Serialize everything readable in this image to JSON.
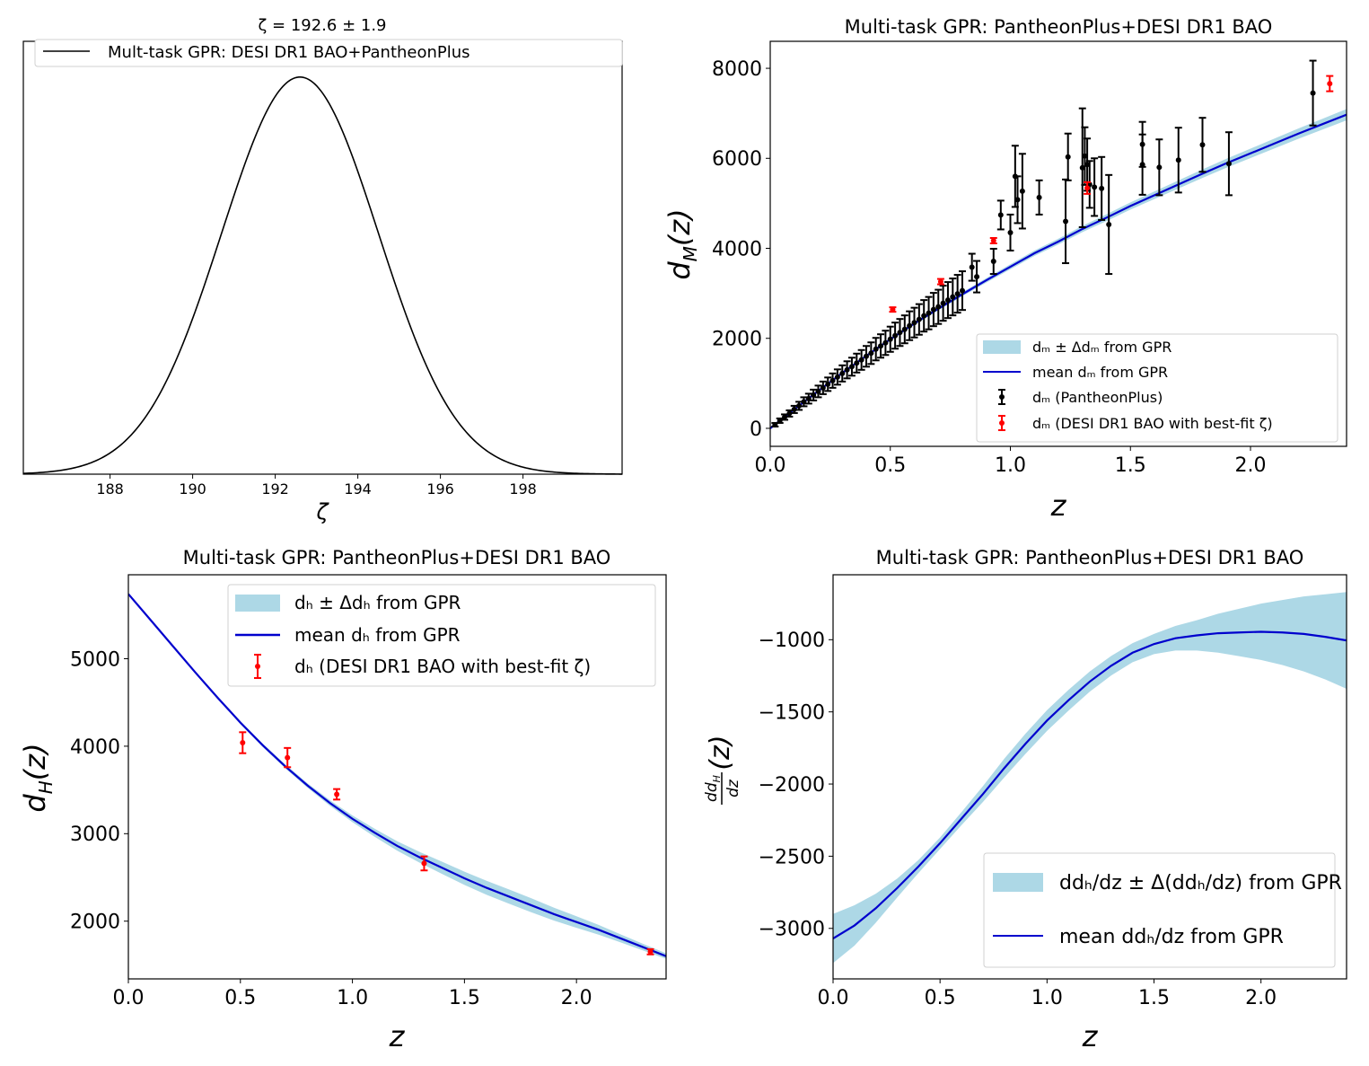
{
  "figure": {
    "layout": "2x2 grid of plots"
  },
  "colors": {
    "band": "#add8e6",
    "mean_line": "#0000cd",
    "pantheon": "#000000",
    "desi": "#ff0000",
    "posterior_line": "#000000"
  },
  "chart_data": [
    {
      "id": "zeta-posterior",
      "type": "line",
      "title": "ζ = 192.6 ± 1.9",
      "xlabel": "ζ",
      "ylabel": "",
      "xlim": [
        185.9,
        200.4
      ],
      "ylim": [
        0,
        1.09
      ],
      "xticks": [
        188,
        190,
        192,
        194,
        196,
        198
      ],
      "yticks": [],
      "grid": false,
      "legend": {
        "placement": "top",
        "entries": [
          {
            "label": "Mult-task GPR: DESI DR1 BAO+PantheonPlus",
            "kind": "line"
          }
        ]
      },
      "series": [
        {
          "name": "Mult-task GPR: DESI DR1 BAO+PantheonPlus",
          "distribution": "gaussian",
          "mean": 192.6,
          "sigma": 1.9
        }
      ]
    },
    {
      "id": "dM-plot",
      "type": "scatter",
      "title": "Multi-task GPR: PantheonPlus+DESI DR1 BAO",
      "xlabel": "z",
      "ylabel": "d_M(z)",
      "xlim": [
        0.0,
        2.4
      ],
      "ylim": [
        -400,
        8600
      ],
      "xticks": [
        0.0,
        0.5,
        1.0,
        1.5,
        2.0
      ],
      "yticks": [
        0,
        2000,
        4000,
        6000,
        8000
      ],
      "grid": false,
      "legend": {
        "placement": "bottom-right",
        "entries": [
          {
            "kind": "band",
            "math": "d_M ± Δd_M",
            "text": " from GPR"
          },
          {
            "kind": "line",
            "prefix": "mean ",
            "math": "d_M",
            "text": " from GPR"
          },
          {
            "kind": "errorbar-black",
            "math": "d_M",
            "text": " (PantheonPlus)"
          },
          {
            "kind": "errorbar-red",
            "math": "d_M",
            "text": " (DESI DR1 BAO with best-fit ζ)"
          }
        ]
      },
      "mean_curve": {
        "x": [
          0.0,
          0.1,
          0.2,
          0.3,
          0.4,
          0.5,
          0.6,
          0.7,
          0.8,
          0.9,
          1.0,
          1.1,
          1.2,
          1.3,
          1.4,
          1.5,
          1.6,
          1.7,
          1.8,
          1.9,
          2.0,
          2.1,
          2.2,
          2.3,
          2.4
        ],
        "y": [
          0,
          420,
          830,
          1230,
          1610,
          1980,
          2330,
          2660,
          2980,
          3290,
          3590,
          3890,
          4150,
          4430,
          4680,
          4940,
          5180,
          5420,
          5660,
          5890,
          6110,
          6330,
          6550,
          6760,
          6970
        ],
        "band_halfwidth": [
          5,
          10,
          15,
          20,
          25,
          30,
          35,
          40,
          45,
          50,
          55,
          60,
          65,
          70,
          75,
          80,
          85,
          90,
          95,
          100,
          105,
          110,
          115,
          120,
          125
        ]
      },
      "pantheon_points": {
        "x": [
          0.02,
          0.04,
          0.06,
          0.08,
          0.1,
          0.12,
          0.14,
          0.16,
          0.18,
          0.2,
          0.22,
          0.24,
          0.26,
          0.28,
          0.3,
          0.32,
          0.34,
          0.36,
          0.38,
          0.4,
          0.42,
          0.44,
          0.46,
          0.48,
          0.5,
          0.52,
          0.54,
          0.56,
          0.58,
          0.6,
          0.62,
          0.64,
          0.66,
          0.68,
          0.7,
          0.72,
          0.74,
          0.76,
          0.78,
          0.8,
          0.84,
          0.86,
          0.93,
          0.96,
          1.0,
          1.02,
          1.03,
          1.05,
          1.12,
          1.23,
          1.24,
          1.3,
          1.31,
          1.32,
          1.33,
          1.35,
          1.38,
          1.41,
          1.55,
          1.55,
          1.62,
          1.7,
          1.8,
          1.91,
          2.26
        ],
        "y": [
          80,
          170,
          250,
          330,
          420,
          500,
          590,
          660,
          740,
          820,
          900,
          980,
          1060,
          1140,
          1220,
          1300,
          1370,
          1450,
          1520,
          1600,
          1670,
          1760,
          1830,
          1900,
          1980,
          2060,
          2130,
          2200,
          2280,
          2350,
          2420,
          2500,
          2560,
          2640,
          2700,
          2780,
          2850,
          2920,
          2990,
          3060,
          3580,
          3370,
          3710,
          4740,
          4350,
          5600,
          5080,
          5270,
          5130,
          4600,
          6030,
          5790,
          6050,
          5860,
          5420,
          5360,
          5330,
          4530,
          5860,
          6310,
          5800,
          5960,
          6300,
          5880,
          7450
        ],
        "err": [
          40,
          50,
          60,
          70,
          80,
          90,
          100,
          110,
          120,
          130,
          140,
          150,
          160,
          170,
          180,
          190,
          200,
          210,
          220,
          230,
          240,
          250,
          260,
          270,
          280,
          290,
          300,
          310,
          320,
          330,
          340,
          350,
          360,
          370,
          380,
          390,
          400,
          410,
          420,
          430,
          300,
          350,
          280,
          320,
          400,
          680,
          520,
          830,
          380,
          930,
          520,
          1320,
          640,
          580,
          520,
          640,
          700,
          1100,
          670,
          500,
          620,
          720,
          600,
          700,
          720
        ]
      },
      "desi_points": {
        "x": [
          0.51,
          0.71,
          0.93,
          1.32,
          2.33
        ],
        "y": [
          2640,
          3260,
          4170,
          5340,
          7660
        ],
        "err": [
          50,
          60,
          60,
          130,
          170
        ]
      }
    },
    {
      "id": "dH-plot",
      "type": "line",
      "title": "Multi-task GPR: PantheonPlus+DESI DR1 BAO",
      "xlabel": "z",
      "ylabel": "d_H(z)",
      "xlim": [
        0.0,
        2.4
      ],
      "ylim": [
        1340,
        5960
      ],
      "xticks": [
        0.0,
        0.5,
        1.0,
        1.5,
        2.0
      ],
      "yticks": [
        2000,
        3000,
        4000,
        5000
      ],
      "grid": false,
      "legend": {
        "placement": "top-right",
        "entries": [
          {
            "kind": "band",
            "math": "d_H ± Δd_H",
            "text": " from GPR"
          },
          {
            "kind": "line",
            "prefix": "mean ",
            "math": "d_H",
            "text": " from GPR"
          },
          {
            "kind": "errorbar-red",
            "math": "d_H",
            "text": " (DESI DR1 BAO with best-fit ζ)"
          }
        ]
      },
      "mean_curve": {
        "x": [
          0.0,
          0.1,
          0.2,
          0.3,
          0.4,
          0.5,
          0.6,
          0.7,
          0.8,
          0.9,
          1.0,
          1.1,
          1.2,
          1.3,
          1.4,
          1.5,
          1.6,
          1.7,
          1.8,
          1.9,
          2.0,
          2.1,
          2.2,
          2.3,
          2.4
        ],
        "y": [
          5740,
          5440,
          5140,
          4840,
          4550,
          4270,
          4010,
          3770,
          3550,
          3350,
          3170,
          3010,
          2860,
          2730,
          2610,
          2490,
          2380,
          2280,
          2180,
          2080,
          1990,
          1900,
          1800,
          1700,
          1600
        ],
        "band_halfwidth": [
          10,
          10,
          12,
          14,
          16,
          18,
          20,
          22,
          26,
          32,
          38,
          46,
          54,
          62,
          70,
          76,
          80,
          82,
          80,
          74,
          66,
          56,
          46,
          38,
          32
        ]
      },
      "desi_points": {
        "x": [
          0.51,
          0.71,
          0.93,
          1.32,
          2.33
        ],
        "y": [
          4040,
          3870,
          3450,
          2660,
          1650
        ],
        "err": [
          120,
          110,
          60,
          80,
          30
        ]
      }
    },
    {
      "id": "dHdz-plot",
      "type": "line",
      "title": "Multi-task GPR: PantheonPlus+DESI DR1 BAO",
      "xlabel": "z",
      "ylabel": "dd_H/dz(z)",
      "xlim": [
        0.0,
        2.4
      ],
      "ylim": [
        -3350,
        -550
      ],
      "xticks": [
        0.0,
        0.5,
        1.0,
        1.5,
        2.0
      ],
      "yticks": [
        -3000,
        -2500,
        -2000,
        -1500,
        -1000
      ],
      "grid": false,
      "legend": {
        "placement": "bottom-right",
        "entries": [
          {
            "kind": "band",
            "text": "dd_H/dz ± Δ(dd_H/dz) from GPR"
          },
          {
            "kind": "line",
            "text": "mean dd_H/dz from GPR"
          }
        ]
      },
      "mean_curve": {
        "x": [
          0.0,
          0.1,
          0.2,
          0.3,
          0.4,
          0.5,
          0.6,
          0.7,
          0.8,
          0.9,
          1.0,
          1.1,
          1.2,
          1.3,
          1.4,
          1.5,
          1.6,
          1.7,
          1.8,
          1.9,
          2.0,
          2.1,
          2.2,
          2.3,
          2.4
        ],
        "y": [
          -3070,
          -2980,
          -2860,
          -2720,
          -2570,
          -2410,
          -2240,
          -2070,
          -1890,
          -1720,
          -1560,
          -1420,
          -1290,
          -1180,
          -1090,
          -1030,
          -990,
          -970,
          -955,
          -950,
          -945,
          -950,
          -960,
          -980,
          -1005
        ],
        "band_halfwidth": [
          170,
          140,
          100,
          65,
          45,
          40,
          45,
          55,
          65,
          70,
          72,
          72,
          70,
          68,
          66,
          70,
          85,
          105,
          135,
          165,
          195,
          225,
          260,
          295,
          335
        ]
      }
    }
  ]
}
